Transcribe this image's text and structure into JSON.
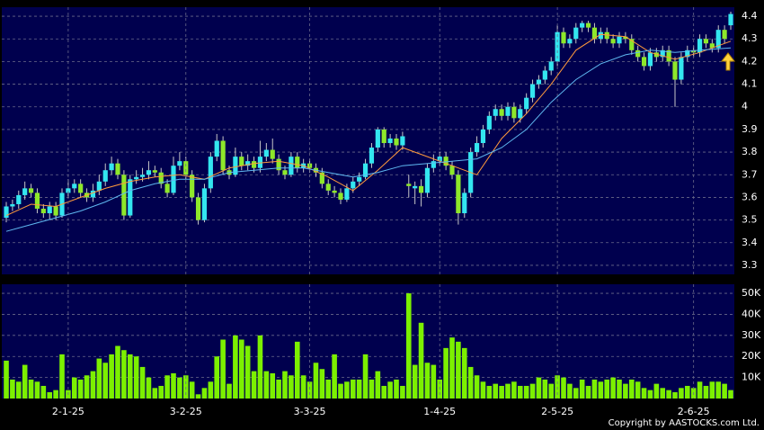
{
  "chart_data": [
    {
      "type": "candlestick",
      "up_color": "#33e6f0",
      "down_color": "#8ee82a",
      "open": [
        3.51,
        3.56,
        3.57,
        3.61,
        3.64,
        3.62,
        3.55,
        3.53,
        3.56,
        3.52,
        3.62,
        3.64,
        3.66,
        3.62,
        3.6,
        3.63,
        3.67,
        3.72,
        3.75,
        3.7,
        3.52,
        3.68,
        3.69,
        3.7,
        3.72,
        3.71,
        3.66,
        3.62,
        3.74,
        3.76,
        3.7,
        3.6,
        3.5,
        3.64,
        3.78,
        3.85,
        3.72,
        3.7,
        3.78,
        3.74,
        3.76,
        3.73,
        3.78,
        3.81,
        3.77,
        3.72,
        3.7,
        3.78,
        3.73,
        3.75,
        3.73,
        3.71,
        3.66,
        3.63,
        3.62,
        3.59,
        3.64,
        3.67,
        3.69,
        3.75,
        3.82,
        3.9,
        3.84,
        3.86,
        3.83,
        3.66,
        3.64,
        3.65,
        3.62,
        3.73,
        3.76,
        3.78,
        3.74,
        3.7,
        3.53,
        3.62,
        3.8,
        3.84,
        3.9,
        3.96,
        3.99,
        3.96,
        4.0,
        3.95,
        3.99,
        4.04,
        4.1,
        4.12,
        4.16,
        4.2,
        4.33,
        4.28,
        4.3,
        4.35,
        4.37,
        4.35,
        4.3,
        4.33,
        4.3,
        4.28,
        4.31,
        4.3,
        4.25,
        4.22,
        4.18,
        4.24,
        4.22,
        4.25,
        4.2,
        4.12,
        4.22,
        4.25,
        4.24,
        4.3,
        4.28,
        4.26,
        4.34,
        4.36
      ],
      "high": [
        3.58,
        3.59,
        3.63,
        3.67,
        3.66,
        3.64,
        3.57,
        3.58,
        3.58,
        3.64,
        3.68,
        3.68,
        3.68,
        3.64,
        3.66,
        3.7,
        3.75,
        3.78,
        3.77,
        3.72,
        3.7,
        3.72,
        3.73,
        3.76,
        3.74,
        3.73,
        3.68,
        3.78,
        3.8,
        3.78,
        3.72,
        3.62,
        3.66,
        3.8,
        3.88,
        3.87,
        3.74,
        3.82,
        3.8,
        3.79,
        3.78,
        3.85,
        3.84,
        3.86,
        3.79,
        3.74,
        3.8,
        3.8,
        3.77,
        3.77,
        3.75,
        3.73,
        3.68,
        3.65,
        3.64,
        3.66,
        3.69,
        3.71,
        3.77,
        3.84,
        3.91,
        3.91,
        3.88,
        3.88,
        3.89,
        3.7,
        3.67,
        3.68,
        3.75,
        3.79,
        3.8,
        3.8,
        3.76,
        3.72,
        3.64,
        3.82,
        3.87,
        3.92,
        3.98,
        4.01,
        4.01,
        4.02,
        4.02,
        4.01,
        4.06,
        4.12,
        4.14,
        4.18,
        4.22,
        4.36,
        4.35,
        4.32,
        4.37,
        4.38,
        4.38,
        4.37,
        4.35,
        4.35,
        4.32,
        4.33,
        4.33,
        4.32,
        4.27,
        4.24,
        4.26,
        4.26,
        4.27,
        4.27,
        4.22,
        4.24,
        4.27,
        4.27,
        4.32,
        4.32,
        4.3,
        4.36,
        4.36,
        4.42
      ],
      "low": [
        3.49,
        3.54,
        3.55,
        3.59,
        3.6,
        3.53,
        3.51,
        3.5,
        3.5,
        3.51,
        3.6,
        3.62,
        3.6,
        3.58,
        3.58,
        3.61,
        3.65,
        3.7,
        3.68,
        3.5,
        3.51,
        3.66,
        3.67,
        3.68,
        3.69,
        3.64,
        3.6,
        3.61,
        3.72,
        3.68,
        3.58,
        3.48,
        3.49,
        3.62,
        3.76,
        3.7,
        3.68,
        3.69,
        3.72,
        3.72,
        3.71,
        3.71,
        3.76,
        3.75,
        3.7,
        3.68,
        3.69,
        3.71,
        3.71,
        3.71,
        3.69,
        3.64,
        3.61,
        3.6,
        3.57,
        3.58,
        3.62,
        3.65,
        3.68,
        3.73,
        3.8,
        3.82,
        3.82,
        3.81,
        3.81,
        3.6,
        3.57,
        3.56,
        3.6,
        3.71,
        3.74,
        3.72,
        3.68,
        3.48,
        3.51,
        3.6,
        3.78,
        3.82,
        3.88,
        3.94,
        3.94,
        3.94,
        3.93,
        3.93,
        3.97,
        4.02,
        4.08,
        4.1,
        4.14,
        4.18,
        4.26,
        4.26,
        4.28,
        4.33,
        4.33,
        4.28,
        4.28,
        4.28,
        4.26,
        4.26,
        4.28,
        4.23,
        4.2,
        4.16,
        4.16,
        4.2,
        4.2,
        4.18,
        4.0,
        4.1,
        4.2,
        4.22,
        4.22,
        4.26,
        4.24,
        4.24,
        4.28,
        4.34
      ],
      "close": [
        3.56,
        3.57,
        3.61,
        3.64,
        3.62,
        3.55,
        3.53,
        3.56,
        3.52,
        3.62,
        3.64,
        3.66,
        3.62,
        3.6,
        3.63,
        3.67,
        3.72,
        3.75,
        3.7,
        3.52,
        3.68,
        3.69,
        3.7,
        3.72,
        3.71,
        3.66,
        3.62,
        3.74,
        3.76,
        3.7,
        3.6,
        3.5,
        3.64,
        3.78,
        3.85,
        3.72,
        3.7,
        3.78,
        3.74,
        3.76,
        3.73,
        3.78,
        3.81,
        3.77,
        3.72,
        3.7,
        3.78,
        3.73,
        3.75,
        3.73,
        3.71,
        3.66,
        3.63,
        3.62,
        3.59,
        3.64,
        3.67,
        3.69,
        3.75,
        3.82,
        3.9,
        3.84,
        3.86,
        3.83,
        3.87,
        3.65,
        3.65,
        3.62,
        3.73,
        3.76,
        3.78,
        3.74,
        3.7,
        3.53,
        3.62,
        3.8,
        3.84,
        3.9,
        3.96,
        3.99,
        3.96,
        4.0,
        3.95,
        3.99,
        4.04,
        4.1,
        4.12,
        4.16,
        4.2,
        4.33,
        4.28,
        4.3,
        4.35,
        4.37,
        4.35,
        4.3,
        4.33,
        4.3,
        4.28,
        4.31,
        4.3,
        4.25,
        4.22,
        4.18,
        4.24,
        4.22,
        4.25,
        4.2,
        4.12,
        4.22,
        4.25,
        4.24,
        4.3,
        4.28,
        4.26,
        4.34,
        4.3,
        4.41
      ],
      "series": [
        {
          "color": "#ff9a3c",
          "x": [
            0,
            4,
            8,
            12,
            16,
            20,
            24,
            28,
            32,
            36,
            40,
            44,
            48,
            52,
            56,
            60,
            64,
            68,
            72,
            76,
            80,
            84,
            88,
            92,
            96,
            100,
            104,
            108,
            112,
            117
          ],
          "values": [
            3.52,
            3.57,
            3.56,
            3.6,
            3.64,
            3.67,
            3.69,
            3.7,
            3.68,
            3.73,
            3.75,
            3.76,
            3.74,
            3.69,
            3.63,
            3.72,
            3.82,
            3.78,
            3.74,
            3.7,
            3.86,
            3.97,
            4.1,
            4.25,
            4.32,
            4.31,
            4.24,
            4.21,
            4.24,
            4.29
          ]
        },
        {
          "color": "#5fb8f0",
          "x": [
            0,
            4,
            8,
            12,
            16,
            20,
            24,
            28,
            32,
            36,
            40,
            44,
            48,
            52,
            56,
            60,
            64,
            68,
            72,
            76,
            80,
            84,
            88,
            92,
            96,
            100,
            104,
            108,
            112,
            117
          ],
          "values": [
            3.45,
            3.48,
            3.51,
            3.54,
            3.58,
            3.63,
            3.66,
            3.68,
            3.68,
            3.71,
            3.72,
            3.73,
            3.73,
            3.71,
            3.69,
            3.71,
            3.74,
            3.75,
            3.76,
            3.77,
            3.82,
            3.9,
            4.02,
            4.12,
            4.19,
            4.23,
            4.25,
            4.24,
            4.25,
            4.26
          ]
        }
      ],
      "ylim": [
        3.26,
        4.44
      ],
      "yticks": [
        3.3,
        3.4,
        3.5,
        3.6,
        3.7,
        3.8,
        3.9,
        4,
        4.1,
        4.2,
        4.3,
        4.4
      ],
      "grid": true
    },
    {
      "type": "bar",
      "color": "#7cf000",
      "categories": [
        null,
        null,
        null,
        null,
        null,
        null,
        null,
        null,
        null,
        null,
        "2-1-25",
        null,
        null,
        null,
        null,
        null,
        null,
        null,
        null,
        null,
        null,
        null,
        null,
        null,
        null,
        null,
        null,
        null,
        null,
        "3-2-25",
        null,
        null,
        null,
        null,
        null,
        null,
        null,
        null,
        null,
        null,
        null,
        null,
        null,
        null,
        null,
        null,
        null,
        null,
        null,
        "3-3-25",
        null,
        null,
        null,
        null,
        null,
        null,
        null,
        null,
        null,
        null,
        null,
        null,
        null,
        null,
        null,
        null,
        null,
        null,
        null,
        null,
        "1-4-25",
        null,
        null,
        null,
        null,
        null,
        null,
        null,
        null,
        null,
        null,
        null,
        null,
        null,
        null,
        null,
        null,
        null,
        null,
        "2-5-25",
        null,
        null,
        null,
        null,
        null,
        null,
        null,
        null,
        null,
        null,
        null,
        null,
        null,
        null,
        null,
        null,
        null,
        null,
        null,
        null,
        null,
        "2-6-25",
        null,
        null,
        null,
        null,
        null,
        null
      ],
      "values": [
        18000,
        9000,
        8000,
        16000,
        9000,
        8000,
        6000,
        3000,
        4000,
        21000,
        4000,
        10000,
        9000,
        11000,
        13000,
        19000,
        17000,
        21000,
        25000,
        23000,
        21000,
        20000,
        15000,
        10000,
        5000,
        6000,
        11000,
        12000,
        10000,
        11000,
        8000,
        2000,
        5000,
        8000,
        20000,
        28000,
        7000,
        30000,
        28000,
        25000,
        13000,
        30000,
        13000,
        12000,
        9000,
        13000,
        11000,
        27000,
        11000,
        8000,
        17000,
        14000,
        9000,
        21000,
        7000,
        8000,
        9000,
        9000,
        21000,
        9000,
        13000,
        6000,
        8000,
        9000,
        6000,
        50000,
        16000,
        36000,
        17000,
        16000,
        9000,
        24000,
        29000,
        27000,
        24000,
        15000,
        11000,
        8000,
        6000,
        7000,
        6000,
        7000,
        8000,
        6000,
        6000,
        7000,
        10000,
        9000,
        7000,
        11000,
        10000,
        7000,
        5000,
        9000,
        6000,
        9000,
        8000,
        9000,
        10000,
        9000,
        7000,
        9000,
        8000,
        5000,
        4000,
        7000,
        5000,
        4000,
        3000,
        5000,
        6000,
        5000,
        8000,
        6000,
        8000,
        8000,
        7000,
        4000
      ],
      "ylim": [
        0,
        54300
      ],
      "yticks": [
        {
          "value": 10000,
          "label": "10K"
        },
        {
          "value": 20000,
          "label": "20K"
        },
        {
          "value": 30000,
          "label": "30K"
        },
        {
          "value": 40000,
          "label": "40K"
        },
        {
          "value": 50000,
          "label": "50K"
        }
      ],
      "grid": true,
      "copyright": "Copyright by AASTOCKS.com Ltd."
    }
  ]
}
